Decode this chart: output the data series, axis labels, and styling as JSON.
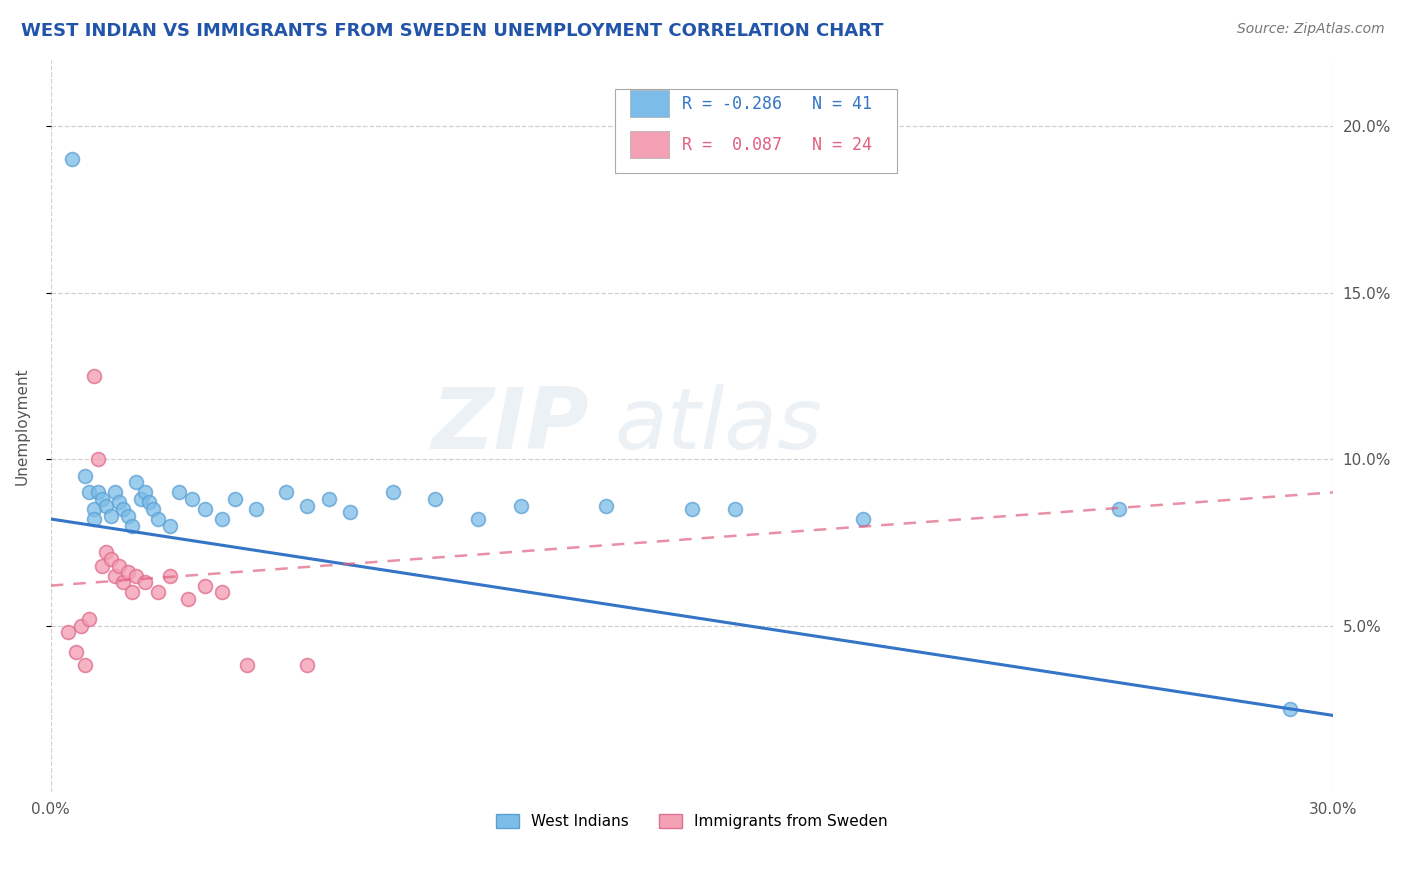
{
  "title": "WEST INDIAN VS IMMIGRANTS FROM SWEDEN UNEMPLOYMENT CORRELATION CHART",
  "source": "Source: ZipAtlas.com",
  "ylabel": "Unemployment",
  "xlim": [
    0.0,
    0.3
  ],
  "ylim": [
    0.0,
    0.22
  ],
  "right_yticks": [
    0.05,
    0.1,
    0.15,
    0.2
  ],
  "right_yticklabels": [
    "5.0%",
    "10.0%",
    "15.0%",
    "20.0%"
  ],
  "xticks": [
    0.0,
    0.05,
    0.1,
    0.15,
    0.2,
    0.25,
    0.3
  ],
  "xticklabels": [
    "0.0%",
    "",
    "",
    "",
    "",
    "",
    "30.0%"
  ],
  "watermark_left": "ZIP",
  "watermark_right": "atlas",
  "series": [
    {
      "name": "West Indians",
      "color": "#7bbde8",
      "edge_color": "#5a9fd4",
      "R": -0.286,
      "N": 41,
      "trend_color": "#3475c8",
      "trend_start_x": 0.0,
      "trend_start_y": 0.082,
      "trend_end_x": 0.3,
      "trend_end_y": 0.023,
      "dashed_trend": false,
      "points": [
        [
          0.005,
          0.19
        ],
        [
          0.008,
          0.095
        ],
        [
          0.009,
          0.09
        ],
        [
          0.01,
          0.085
        ],
        [
          0.01,
          0.082
        ],
        [
          0.011,
          0.09
        ],
        [
          0.012,
          0.088
        ],
        [
          0.013,
          0.086
        ],
        [
          0.014,
          0.083
        ],
        [
          0.015,
          0.09
        ],
        [
          0.016,
          0.087
        ],
        [
          0.017,
          0.085
        ],
        [
          0.018,
          0.083
        ],
        [
          0.019,
          0.08
        ],
        [
          0.02,
          0.093
        ],
        [
          0.021,
          0.088
        ],
        [
          0.022,
          0.09
        ],
        [
          0.023,
          0.087
        ],
        [
          0.024,
          0.085
        ],
        [
          0.025,
          0.082
        ],
        [
          0.028,
          0.08
        ],
        [
          0.03,
          0.09
        ],
        [
          0.033,
          0.088
        ],
        [
          0.036,
          0.085
        ],
        [
          0.04,
          0.082
        ],
        [
          0.043,
          0.088
        ],
        [
          0.048,
          0.085
        ],
        [
          0.055,
          0.09
        ],
        [
          0.06,
          0.086
        ],
        [
          0.065,
          0.088
        ],
        [
          0.07,
          0.084
        ],
        [
          0.08,
          0.09
        ],
        [
          0.09,
          0.088
        ],
        [
          0.1,
          0.082
        ],
        [
          0.11,
          0.086
        ],
        [
          0.13,
          0.086
        ],
        [
          0.15,
          0.085
        ],
        [
          0.16,
          0.085
        ],
        [
          0.19,
          0.082
        ],
        [
          0.25,
          0.085
        ],
        [
          0.29,
          0.025
        ]
      ]
    },
    {
      "name": "Immigrants from Sweden",
      "color": "#f4a0b5",
      "edge_color": "#e07090",
      "R": 0.087,
      "N": 24,
      "trend_color": "#e06080",
      "trend_start_x": 0.0,
      "trend_start_y": 0.062,
      "trend_end_x": 0.3,
      "trend_end_y": 0.09,
      "dashed_trend": true,
      "points": [
        [
          0.004,
          0.048
        ],
        [
          0.006,
          0.042
        ],
        [
          0.007,
          0.05
        ],
        [
          0.008,
          0.038
        ],
        [
          0.009,
          0.052
        ],
        [
          0.01,
          0.125
        ],
        [
          0.011,
          0.1
        ],
        [
          0.012,
          0.068
        ],
        [
          0.013,
          0.072
        ],
        [
          0.014,
          0.07
        ],
        [
          0.015,
          0.065
        ],
        [
          0.016,
          0.068
        ],
        [
          0.017,
          0.063
        ],
        [
          0.018,
          0.066
        ],
        [
          0.019,
          0.06
        ],
        [
          0.02,
          0.065
        ],
        [
          0.022,
          0.063
        ],
        [
          0.025,
          0.06
        ],
        [
          0.028,
          0.065
        ],
        [
          0.032,
          0.058
        ],
        [
          0.036,
          0.062
        ],
        [
          0.04,
          0.06
        ],
        [
          0.046,
          0.038
        ],
        [
          0.06,
          0.038
        ]
      ]
    }
  ],
  "background_color": "#ffffff",
  "grid_color": "#d0d0d0",
  "title_color": "#2255aa",
  "axis_color": "#555555"
}
